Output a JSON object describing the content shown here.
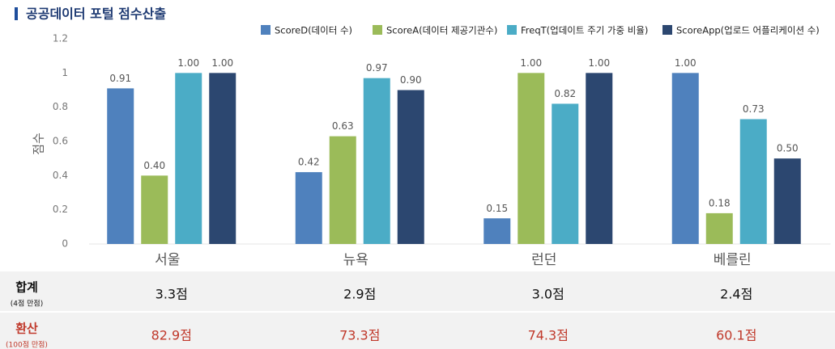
{
  "chart_data": {
    "type": "bar",
    "title": "공공데이터 포털 점수산출",
    "y_label": "점수",
    "categories": [
      "서울",
      "뉴욕",
      "런던",
      "베를린"
    ],
    "series": [
      {
        "name": "ScoreD(데이터 수)",
        "color": "#4f81bd",
        "values": [
          0.91,
          0.42,
          0.15,
          1.0
        ],
        "value_labels": [
          "0.91",
          "0.42",
          "0.15",
          "1.00"
        ]
      },
      {
        "name": "ScoreA(데이터 제공기관수)",
        "color": "#9bbb59",
        "values": [
          0.4,
          0.63,
          1.0,
          0.18
        ],
        "value_labels": [
          "0.40",
          "0.63",
          "1.00",
          "0.18"
        ]
      },
      {
        "name": "FreqT(업데이트 주기 가중 비율)",
        "color": "#4bacc6",
        "values": [
          1.0,
          0.97,
          0.82,
          0.73
        ],
        "value_labels": [
          "1.00",
          "0.97",
          "0.82",
          "0.73"
        ]
      },
      {
        "name": "ScoreApp(업로드 어플리케이션 수)",
        "color": "#2c4770",
        "values": [
          1.0,
          0.9,
          1.0,
          0.5
        ],
        "value_labels": [
          "1.00",
          "0.90",
          "1.00",
          "0.50"
        ]
      }
    ],
    "ylim": [
      0,
      1.2
    ],
    "yticks": [
      0,
      0.2,
      0.4,
      0.6,
      0.8,
      1,
      1.2
    ],
    "grid": false
  },
  "table": {
    "rows": [
      {
        "label": "합계",
        "note": "(4점 만점)",
        "values": [
          "3.3점",
          "2.9점",
          "3.0점",
          "2.4점"
        ]
      },
      {
        "label": "환산",
        "note": "(100점 만점)",
        "values": [
          "82.9점",
          "73.3점",
          "74.3점",
          "60.1점"
        ]
      }
    ]
  }
}
